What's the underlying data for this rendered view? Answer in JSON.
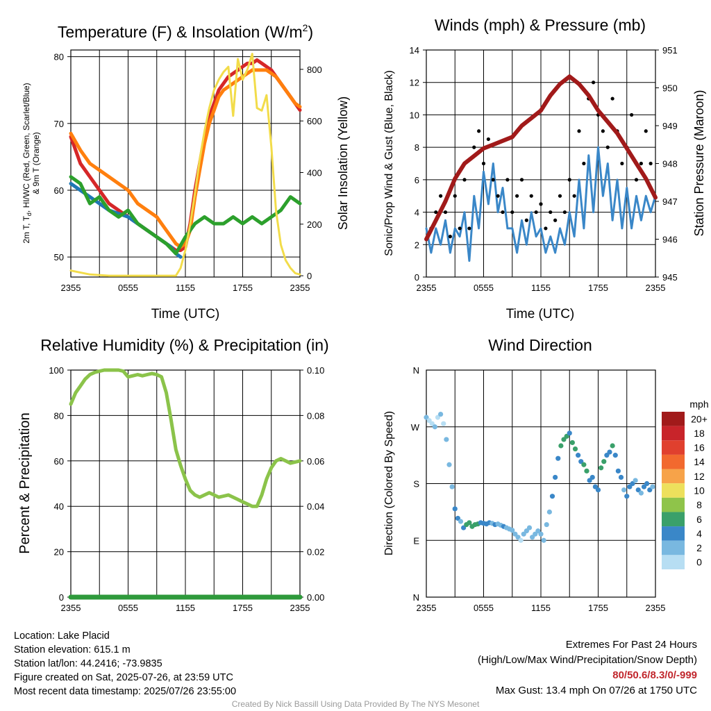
{
  "charts": {
    "temp": {
      "title": "Temperature (F) & Insolation (W/m",
      "title_sup": "2",
      "title_end": ")",
      "ylabel_left_1": "2m T, T",
      "ylabel_left_1_sub": "d",
      "ylabel_left_1_end": ", HI/WC (Red, Green, Scarlet/Blue)",
      "ylabel_left_2": "& 9m T (Orange)",
      "ylabel_right": "Solar Insolation (Yellow)",
      "xlabel": "Time (UTC)"
    },
    "winds": {
      "title": "Winds (mph) & Pressure (mb)",
      "ylabel_left": "Sonic/Prop Wind & Gust (Blue, Black)",
      "ylabel_right": "Station Pressure (Maroon)",
      "xlabel": "Time (UTC)"
    },
    "rh": {
      "title": "Relative Humidity (%) & Precipitation (in)",
      "ylabel_left": "Percent & Precipitation"
    },
    "wdir": {
      "title": "Wind Direction",
      "ylabel_left": "Direction (Colored By Speed)",
      "colorbar_unit": "mph"
    }
  },
  "chart_data": [
    {
      "type": "line",
      "x_ticks": [
        "2355",
        "0555",
        "1155",
        "1755",
        "2355"
      ],
      "x_hours": [
        0,
        3,
        6,
        9,
        12,
        15,
        18,
        21,
        24
      ],
      "ylim": [
        47,
        81
      ],
      "y_ticks": [
        50,
        60,
        70,
        80
      ],
      "y2lim": [
        -5,
        875
      ],
      "y2_ticks": [
        0,
        200,
        400,
        600,
        800
      ],
      "series": [
        {
          "color": "#d62728",
          "x": [
            0,
            1,
            2,
            3,
            4,
            5,
            6,
            7,
            8,
            9,
            9.5,
            10,
            10.5,
            11,
            11.5,
            12,
            12.5,
            13,
            13.5,
            14,
            14.5,
            15,
            15.5,
            16,
            16.5,
            17,
            17.5,
            18,
            18.5,
            19,
            19.5,
            20,
            20.5,
            21,
            21.5,
            22,
            22.5,
            23,
            23.5,
            24
          ],
          "y": [
            68,
            64,
            62,
            60,
            58,
            57,
            56,
            55,
            54,
            53,
            52.5,
            52,
            51.5,
            51,
            51,
            51.5,
            55,
            60,
            64,
            68,
            71,
            73,
            75,
            76,
            77,
            77.5,
            78,
            78.5,
            79,
            79,
            79.5,
            79,
            78.5,
            78,
            77,
            76,
            75,
            74,
            73,
            72
          ]
        },
        {
          "color": "#ff7f0e",
          "x": [
            0,
            1,
            2,
            3,
            4,
            5,
            6,
            7,
            8,
            9,
            9.5,
            10,
            10.5,
            11,
            11.5,
            12,
            12.5,
            13,
            13.5,
            14,
            14.5,
            15,
            15.5,
            16,
            16.5,
            17,
            17.5,
            18,
            18.5,
            19,
            19.5,
            20,
            20.5,
            21,
            21.5,
            22,
            22.5,
            23,
            23.5,
            24
          ],
          "y": [
            68.5,
            66,
            64,
            63,
            62,
            61,
            60,
            58,
            57,
            56,
            55,
            54,
            53,
            52,
            51.5,
            52,
            54,
            59,
            63,
            67,
            70,
            72,
            74,
            75,
            75.5,
            76,
            76.5,
            77,
            77.5,
            78,
            78,
            78,
            78,
            77.5,
            77,
            76,
            75,
            74,
            73,
            72.5
          ]
        },
        {
          "color": "#1f77b4",
          "x": [
            0,
            2,
            4,
            6,
            8,
            9,
            10,
            10.5,
            11,
            11.5
          ],
          "y": [
            61,
            59,
            57,
            56,
            54,
            53,
            52,
            51.5,
            50.5,
            50
          ]
        },
        {
          "color": "#2ca02c",
          "x": [
            0,
            1,
            2,
            3,
            4,
            5,
            6,
            7,
            8,
            9,
            10,
            11,
            12,
            13,
            14,
            15,
            16,
            17,
            18,
            19,
            20,
            21,
            22,
            23,
            24
          ],
          "y": [
            62,
            61,
            58,
            59,
            57,
            56,
            57,
            55,
            54,
            53,
            52,
            50.5,
            53,
            55,
            56,
            55,
            55,
            56,
            55,
            56,
            55,
            56,
            57,
            59,
            58
          ]
        },
        {
          "color": "#f2dc4a",
          "axis": "y2",
          "x": [
            0,
            2,
            4,
            6,
            8,
            10,
            11,
            11.5,
            12,
            12.5,
            13,
            13.5,
            14,
            14.5,
            15,
            15.5,
            16,
            16.5,
            17,
            17.5,
            18,
            18.5,
            19,
            19.5,
            20,
            20.5,
            21,
            21.5,
            22,
            22.5,
            23,
            23.5,
            24
          ],
          "y": [
            20,
            5,
            0,
            0,
            0,
            0,
            0,
            30,
            100,
            200,
            320,
            450,
            560,
            650,
            720,
            760,
            790,
            810,
            620,
            840,
            760,
            800,
            860,
            650,
            640,
            700,
            500,
            250,
            120,
            60,
            30,
            10,
            5
          ]
        }
      ]
    },
    {
      "type": "line",
      "x_ticks": [
        "2355",
        "0555",
        "1155",
        "1755",
        "2355"
      ],
      "ylim": [
        0,
        14
      ],
      "y_ticks": [
        0,
        2,
        4,
        6,
        8,
        10,
        12,
        14
      ],
      "y2lim": [
        945,
        951
      ],
      "y2_ticks": [
        945,
        946,
        947,
        948,
        949,
        950,
        951
      ],
      "series": [
        {
          "color": "#3a87c8",
          "x": [
            0,
            0.5,
            1,
            1.5,
            2,
            2.5,
            3,
            3.5,
            4,
            4.5,
            5,
            5.5,
            6,
            6.5,
            7,
            7.5,
            8,
            8.5,
            9,
            9.5,
            10,
            10.5,
            11,
            11.5,
            12,
            12.5,
            13,
            13.5,
            14,
            14.5,
            15,
            15.5,
            16,
            16.5,
            17,
            17.5,
            18,
            18.5,
            19,
            19.5,
            20,
            20.5,
            21,
            21.5,
            22,
            22.5,
            23,
            23.5,
            24
          ],
          "y": [
            3,
            1.5,
            3,
            2,
            3.5,
            1.5,
            3,
            2.5,
            4,
            1,
            5,
            3,
            6.5,
            4.5,
            7,
            4,
            5.5,
            3,
            3,
            1.5,
            3.5,
            2,
            4,
            2.5,
            3,
            1.5,
            2.5,
            1.5,
            3,
            2,
            4,
            2.5,
            6,
            3,
            7.5,
            4,
            8,
            5,
            7,
            3.5,
            6,
            3,
            5.5,
            3,
            5,
            3.5,
            5,
            4,
            5
          ]
        },
        {
          "color": "#000000",
          "mode": "markers",
          "x": [
            0.5,
            1,
            1.5,
            2,
            2.5,
            3,
            3.5,
            4,
            4.5,
            5,
            5.5,
            6,
            6.5,
            7,
            7.5,
            8,
            8.5,
            9,
            9.5,
            10,
            10.5,
            11,
            11.5,
            12,
            12.5,
            13,
            13.5,
            14,
            14.5,
            15,
            15.5,
            16,
            16.5,
            17,
            17.5,
            18,
            18.5,
            19,
            19.5,
            20,
            20.5,
            21,
            21.5,
            22,
            22.5,
            23,
            23.5
          ],
          "y": [
            3,
            4,
            5,
            4,
            2.5,
            5,
            3,
            6,
            3,
            8,
            9,
            7,
            8.5,
            6,
            5,
            4,
            6,
            4,
            5,
            6,
            3.5,
            5,
            4,
            4.5,
            3,
            4,
            3.5,
            5,
            4,
            6,
            5,
            9,
            7,
            11,
            12,
            10,
            9,
            8,
            11,
            9,
            7,
            8,
            10,
            6,
            7,
            9,
            7
          ]
        },
        {
          "color": "#a11a1a",
          "axis": "y2",
          "x": [
            0,
            1,
            2,
            3,
            4,
            5,
            6,
            7,
            8,
            9,
            10,
            11,
            12,
            13,
            14,
            15,
            16,
            17,
            18,
            19,
            20,
            21,
            22,
            23,
            24
          ],
          "y": [
            946,
            946.5,
            947,
            947.6,
            948,
            948.2,
            948.4,
            948.5,
            948.6,
            948.7,
            949,
            949.2,
            949.4,
            949.8,
            950.1,
            950.3,
            950.1,
            949.8,
            949.4,
            949.1,
            948.8,
            948.4,
            948.0,
            947.6,
            947.1
          ]
        }
      ]
    },
    {
      "type": "line",
      "x_ticks": [
        "2355",
        "0555",
        "1155",
        "1755",
        "2355"
      ],
      "ylim": [
        0,
        100
      ],
      "y_ticks": [
        0,
        20,
        40,
        60,
        80,
        100
      ],
      "y2lim": [
        0,
        0.1
      ],
      "y2_ticks": [
        "0.00",
        "0.02",
        "0.04",
        "0.06",
        "0.08",
        "0.10"
      ],
      "series": [
        {
          "color": "#8bc34a",
          "x": [
            0,
            0.5,
            1,
            1.5,
            2,
            2.5,
            3,
            3.5,
            4,
            4.5,
            5,
            5.5,
            6,
            6.5,
            7,
            7.5,
            8,
            8.5,
            9,
            9.5,
            10,
            10.5,
            11,
            11.5,
            12,
            12.5,
            13,
            13.5,
            14,
            14.5,
            15,
            15.5,
            16,
            16.5,
            17,
            17.5,
            18,
            18.5,
            19,
            19.5,
            20,
            20.5,
            21,
            21.5,
            22,
            22.5,
            23,
            23.5,
            24
          ],
          "y": [
            85,
            90,
            93,
            96,
            98,
            99,
            99.5,
            100,
            100,
            100,
            100,
            99.5,
            97,
            97.5,
            98,
            97.5,
            98,
            98.5,
            98,
            97,
            90,
            78,
            65,
            58,
            52,
            47,
            45,
            44,
            45,
            46,
            45,
            44,
            44.5,
            45,
            44,
            43,
            42,
            41,
            40,
            40,
            45,
            52,
            57,
            60,
            61,
            60,
            59,
            59.5,
            60
          ]
        },
        {
          "color": "#2e9a3b",
          "x": [
            0,
            24
          ],
          "y": [
            0,
            0
          ]
        }
      ]
    },
    {
      "type": "scatter",
      "x_ticks": [
        "2355",
        "0555",
        "1155",
        "1755",
        "2355"
      ],
      "y_ticks": [
        "N",
        "W",
        "S",
        "E",
        "N"
      ],
      "colorbar_labels": [
        "20+",
        "18",
        "16",
        "14",
        "12",
        "10",
        "8",
        "6",
        "4",
        "2",
        "0"
      ],
      "colorbar_colors": [
        "#a11a1a",
        "#c8242a",
        "#e0402e",
        "#f2692e",
        "#f7a349",
        "#ede05c",
        "#8fc44a",
        "#3aa06a",
        "#3a87c8",
        "#79b8e0",
        "#b7def3"
      ],
      "points_x": [
        0,
        0.3,
        0.6,
        0.9,
        1.2,
        1.5,
        1.8,
        2.1,
        2.4,
        2.7,
        3,
        3.3,
        3.6,
        3.9,
        4.2,
        4.5,
        4.8,
        5.1,
        5.4,
        5.7,
        6,
        6.3,
        6.6,
        6.9,
        7.2,
        7.5,
        7.8,
        8.1,
        8.4,
        8.7,
        9,
        9.3,
        9.6,
        9.9,
        10.2,
        10.5,
        10.8,
        11.1,
        11.4,
        11.7,
        12,
        12.3,
        12.6,
        12.9,
        13.2,
        13.5,
        13.8,
        14.1,
        14.4,
        14.7,
        15,
        15.3,
        15.6,
        15.9,
        16.2,
        16.5,
        16.8,
        17.1,
        17.4,
        17.7,
        18,
        18.3,
        18.6,
        18.9,
        19.2,
        19.5,
        19.8,
        20.1,
        20.4,
        20.7,
        21,
        21.3,
        21.6,
        21.9,
        22.2,
        22.5,
        22.8,
        23.1,
        23.4,
        23.7
      ],
      "points_dir": [
        285,
        280,
        275,
        270,
        285,
        290,
        275,
        250,
        210,
        175,
        140,
        125,
        120,
        110,
        115,
        118,
        112,
        115,
        116,
        118,
        117,
        116,
        118,
        117,
        115,
        116,
        114,
        112,
        110,
        108,
        106,
        100,
        95,
        90,
        100,
        105,
        110,
        95,
        100,
        105,
        100,
        90,
        115,
        135,
        160,
        190,
        220,
        240,
        250,
        255,
        260,
        245,
        235,
        225,
        215,
        210,
        200,
        185,
        190,
        175,
        170,
        205,
        215,
        225,
        230,
        240,
        225,
        200,
        190,
        170,
        160,
        175,
        180,
        185,
        170,
        165,
        175,
        180,
        170,
        175
      ],
      "points_speed": [
        2,
        1,
        1,
        2,
        1,
        2,
        1,
        2,
        3,
        3,
        4,
        4,
        3,
        4,
        6,
        7,
        6,
        6,
        7,
        5,
        4,
        5,
        4,
        3,
        4,
        3,
        3,
        4,
        3,
        2,
        2,
        3,
        2,
        1,
        2,
        2,
        3,
        2,
        3,
        2,
        2,
        3,
        2,
        3,
        4,
        5,
        5,
        6,
        7,
        6,
        5,
        7,
        6,
        5,
        4,
        6,
        7,
        5,
        4,
        5,
        4,
        7,
        6,
        5,
        4,
        6,
        5,
        4,
        5,
        3,
        4,
        5,
        4,
        3,
        4,
        3,
        4,
        5,
        4,
        3
      ]
    }
  ],
  "footer": {
    "location": "Location: Lake Placid",
    "elevation": "Station elevation: 615.1 m",
    "latlon": "Station lat/lon: 44.2416; -73.9835",
    "created": "Figure created on Sat, 2025-07-26, at 23:59 UTC",
    "recent": "Most recent data timestamp: 2025/07/26 23:55:00",
    "extremes_title": "Extremes For Past 24 Hours",
    "extremes_subtitle": "(High/Low/Max Wind/Precipitation/Snow Depth)",
    "extremes_values": "80/50.6/8.3/0/-999",
    "max_gust": "Max Gust: 13.4 mph On 07/26 at 1750 UTC",
    "credit": "Created By Nick Bassill Using Data Provided By The NYS Mesonet"
  }
}
